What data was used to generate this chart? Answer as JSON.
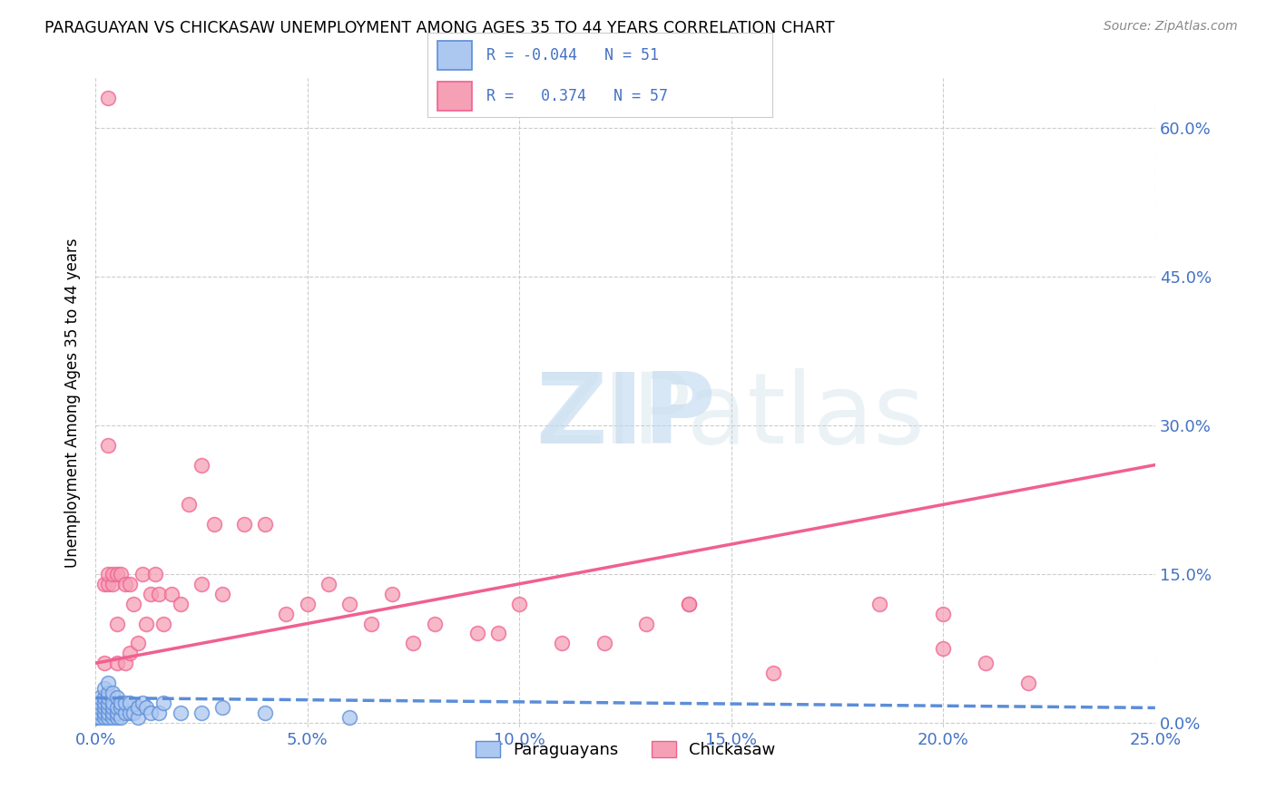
{
  "title": "PARAGUAYAN VS CHICKASAW UNEMPLOYMENT AMONG AGES 35 TO 44 YEARS CORRELATION CHART",
  "source": "Source: ZipAtlas.com",
  "ylabel": "Unemployment Among Ages 35 to 44 years",
  "xlabel_ticks": [
    "0.0%",
    "5.0%",
    "10.0%",
    "15.0%",
    "20.0%",
    "25.0%"
  ],
  "ylabel_ticks": [
    "0.0%",
    "15.0%",
    "30.0%",
    "45.0%",
    "60.0%"
  ],
  "xlim": [
    0.0,
    0.25
  ],
  "ylim": [
    -0.005,
    0.65
  ],
  "paraguayan_color": "#adc8f0",
  "chickasaw_color": "#f5a0b5",
  "paraguayan_line_color": "#5b8dd9",
  "chickasaw_line_color": "#f06090",
  "background_color": "#ffffff",
  "legend_label1": "Paraguayans",
  "legend_label2": "Chickasaw",
  "paraguayan_x": [
    0.0,
    0.0,
    0.0,
    0.0,
    0.001,
    0.001,
    0.001,
    0.001,
    0.001,
    0.002,
    0.002,
    0.002,
    0.002,
    0.002,
    0.002,
    0.003,
    0.003,
    0.003,
    0.003,
    0.003,
    0.003,
    0.003,
    0.004,
    0.004,
    0.004,
    0.004,
    0.004,
    0.005,
    0.005,
    0.005,
    0.005,
    0.006,
    0.006,
    0.006,
    0.007,
    0.007,
    0.008,
    0.008,
    0.009,
    0.01,
    0.01,
    0.011,
    0.012,
    0.013,
    0.015,
    0.016,
    0.02,
    0.025,
    0.03,
    0.04,
    0.06
  ],
  "paraguayan_y": [
    0.005,
    0.005,
    0.01,
    0.015,
    0.005,
    0.01,
    0.015,
    0.02,
    0.025,
    0.005,
    0.01,
    0.015,
    0.02,
    0.025,
    0.035,
    0.005,
    0.01,
    0.015,
    0.02,
    0.025,
    0.03,
    0.04,
    0.005,
    0.01,
    0.015,
    0.02,
    0.03,
    0.005,
    0.01,
    0.015,
    0.025,
    0.005,
    0.015,
    0.02,
    0.01,
    0.02,
    0.01,
    0.02,
    0.01,
    0.005,
    0.015,
    0.02,
    0.015,
    0.01,
    0.01,
    0.02,
    0.01,
    0.01,
    0.015,
    0.01,
    0.005
  ],
  "chickasaw_x": [
    0.0,
    0.001,
    0.002,
    0.002,
    0.003,
    0.003,
    0.003,
    0.004,
    0.004,
    0.005,
    0.005,
    0.005,
    0.006,
    0.007,
    0.007,
    0.008,
    0.008,
    0.009,
    0.01,
    0.011,
    0.012,
    0.013,
    0.014,
    0.015,
    0.016,
    0.018,
    0.02,
    0.022,
    0.025,
    0.028,
    0.03,
    0.035,
    0.04,
    0.045,
    0.05,
    0.055,
    0.06,
    0.065,
    0.07,
    0.075,
    0.08,
    0.09,
    0.095,
    0.1,
    0.11,
    0.12,
    0.13,
    0.14,
    0.16,
    0.185,
    0.2,
    0.21,
    0.22,
    0.003,
    0.025,
    0.14,
    0.2
  ],
  "chickasaw_y": [
    0.005,
    0.01,
    0.06,
    0.14,
    0.14,
    0.15,
    0.28,
    0.14,
    0.15,
    0.06,
    0.1,
    0.15,
    0.15,
    0.06,
    0.14,
    0.07,
    0.14,
    0.12,
    0.08,
    0.15,
    0.1,
    0.13,
    0.15,
    0.13,
    0.1,
    0.13,
    0.12,
    0.22,
    0.14,
    0.2,
    0.13,
    0.2,
    0.2,
    0.11,
    0.12,
    0.14,
    0.12,
    0.1,
    0.13,
    0.08,
    0.1,
    0.09,
    0.09,
    0.12,
    0.08,
    0.08,
    0.1,
    0.12,
    0.05,
    0.12,
    0.11,
    0.06,
    0.04,
    0.63,
    0.26,
    0.12,
    0.075
  ],
  "paraguayan_trendline_x": [
    0.0,
    0.25
  ],
  "paraguayan_trendline_y": [
    0.025,
    0.015
  ],
  "chickasaw_trendline_x": [
    0.0,
    0.25
  ],
  "chickasaw_trendline_y": [
    0.06,
    0.26
  ]
}
